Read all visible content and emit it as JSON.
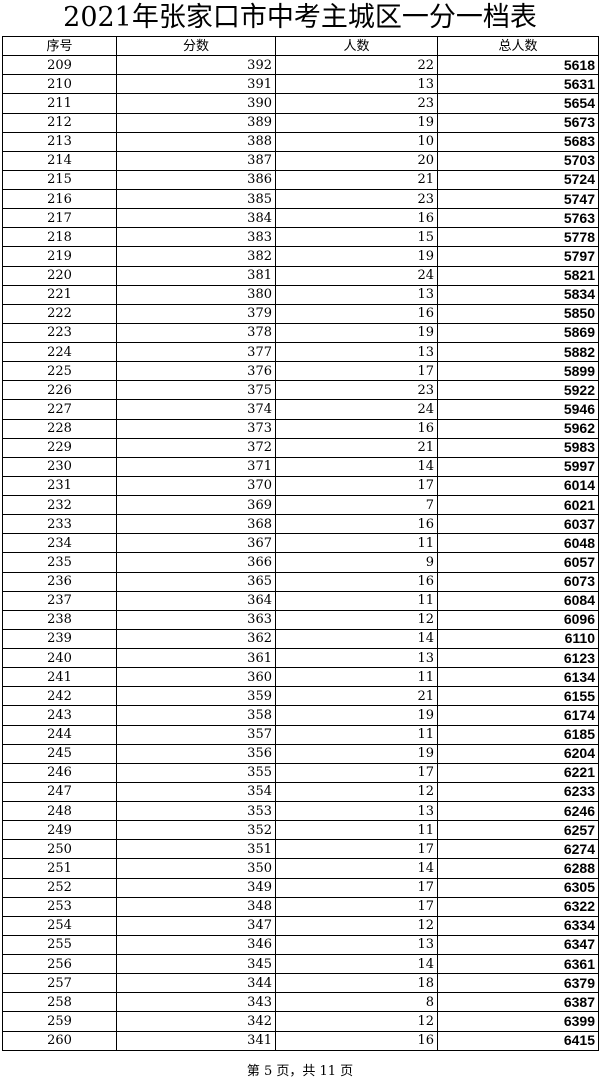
{
  "title": "2021年张家口市中考主城区一分一档表",
  "columns": [
    "序号",
    "分数",
    "人数",
    "总人数"
  ],
  "rows": [
    [
      209,
      392,
      22,
      5618
    ],
    [
      210,
      391,
      13,
      5631
    ],
    [
      211,
      390,
      23,
      5654
    ],
    [
      212,
      389,
      19,
      5673
    ],
    [
      213,
      388,
      10,
      5683
    ],
    [
      214,
      387,
      20,
      5703
    ],
    [
      215,
      386,
      21,
      5724
    ],
    [
      216,
      385,
      23,
      5747
    ],
    [
      217,
      384,
      16,
      5763
    ],
    [
      218,
      383,
      15,
      5778
    ],
    [
      219,
      382,
      19,
      5797
    ],
    [
      220,
      381,
      24,
      5821
    ],
    [
      221,
      380,
      13,
      5834
    ],
    [
      222,
      379,
      16,
      5850
    ],
    [
      223,
      378,
      19,
      5869
    ],
    [
      224,
      377,
      13,
      5882
    ],
    [
      225,
      376,
      17,
      5899
    ],
    [
      226,
      375,
      23,
      5922
    ],
    [
      227,
      374,
      24,
      5946
    ],
    [
      228,
      373,
      16,
      5962
    ],
    [
      229,
      372,
      21,
      5983
    ],
    [
      230,
      371,
      14,
      5997
    ],
    [
      231,
      370,
      17,
      6014
    ],
    [
      232,
      369,
      7,
      6021
    ],
    [
      233,
      368,
      16,
      6037
    ],
    [
      234,
      367,
      11,
      6048
    ],
    [
      235,
      366,
      9,
      6057
    ],
    [
      236,
      365,
      16,
      6073
    ],
    [
      237,
      364,
      11,
      6084
    ],
    [
      238,
      363,
      12,
      6096
    ],
    [
      239,
      362,
      14,
      6110
    ],
    [
      240,
      361,
      13,
      6123
    ],
    [
      241,
      360,
      11,
      6134
    ],
    [
      242,
      359,
      21,
      6155
    ],
    [
      243,
      358,
      19,
      6174
    ],
    [
      244,
      357,
      11,
      6185
    ],
    [
      245,
      356,
      19,
      6204
    ],
    [
      246,
      355,
      17,
      6221
    ],
    [
      247,
      354,
      12,
      6233
    ],
    [
      248,
      353,
      13,
      6246
    ],
    [
      249,
      352,
      11,
      6257
    ],
    [
      250,
      351,
      17,
      6274
    ],
    [
      251,
      350,
      14,
      6288
    ],
    [
      252,
      349,
      17,
      6305
    ],
    [
      253,
      348,
      17,
      6322
    ],
    [
      254,
      347,
      12,
      6334
    ],
    [
      255,
      346,
      13,
      6347
    ],
    [
      256,
      345,
      14,
      6361
    ],
    [
      257,
      344,
      18,
      6379
    ],
    [
      258,
      343,
      8,
      6387
    ],
    [
      259,
      342,
      12,
      6399
    ],
    [
      260,
      341,
      16,
      6415
    ]
  ],
  "footer": "第 5 页，共 11 页"
}
